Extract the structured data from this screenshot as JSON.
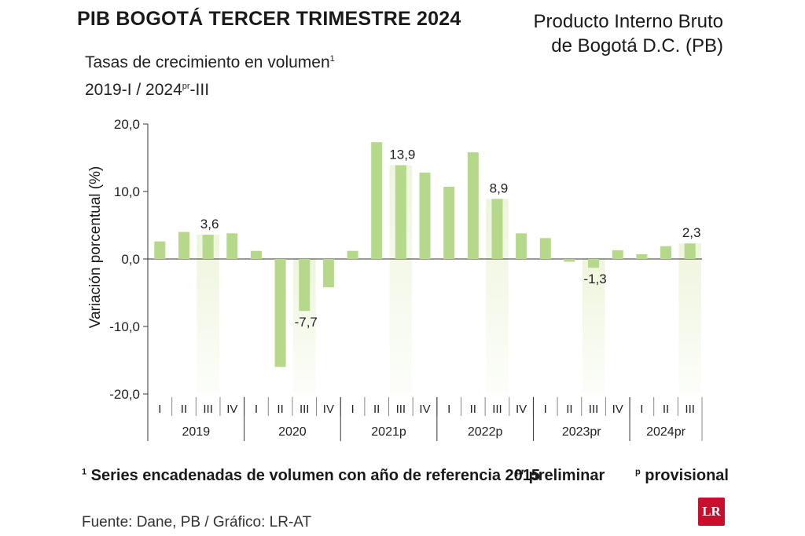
{
  "header": {
    "title": "PIB BOGOTÁ TERCER TRIMESTRE 2024",
    "right_line1": "Producto Interno Bruto",
    "right_line2": "de Bogotá D.C. (PB)",
    "subtitle_line1": "Tasas de crecimiento en volumen",
    "subtitle_sup1": "1",
    "subtitle_line2_a": "2019-I / 2024",
    "subtitle_line2_sup": "pr",
    "subtitle_line2_b": "-III"
  },
  "footer": {
    "note1_sup": "1",
    "note1": " Series encadenadas de volumen con año de referencia 2015",
    "note2_sup": "pr",
    "note2": " preliminar",
    "note3_sup": "p",
    "note3": " provisional",
    "source": "Fuente: Dane, PB / Gráfico: LR-AT",
    "logo_text": "LR"
  },
  "colors": {
    "bar": "#b5d88a",
    "highlight_band": "#eef5dd",
    "axis": "#333333",
    "logo": "#c8102e"
  },
  "chart_data": {
    "type": "bar",
    "title": "PIB BOGOTÁ TERCER TRIMESTRE 2024",
    "ylabel": "Variación porcentual (%)",
    "ylim": [
      -20,
      20
    ],
    "yticks": [
      "20,0",
      "10,0",
      "0,0",
      "-10,0",
      "-20,0"
    ],
    "ytick_values": [
      20,
      10,
      0,
      -10,
      -20
    ],
    "quarter_labels": [
      "I",
      "II",
      "III",
      "IV",
      "I",
      "II",
      "III",
      "IV",
      "I",
      "II",
      "III",
      "IV",
      "I",
      "II",
      "III",
      "IV",
      "I",
      "II",
      "III",
      "IV",
      "I",
      "II",
      "III"
    ],
    "year_groups": [
      {
        "label": "2019",
        "count": 4
      },
      {
        "label": "2020",
        "count": 4
      },
      {
        "label": "2021p",
        "count": 4
      },
      {
        "label": "2022p",
        "count": 4
      },
      {
        "label": "2023pr",
        "count": 4
      },
      {
        "label": "2024pr",
        "count": 3
      }
    ],
    "values": [
      2.6,
      4.0,
      3.6,
      3.8,
      1.2,
      -16.0,
      -7.7,
      -4.2,
      1.2,
      17.3,
      13.9,
      12.8,
      10.7,
      15.8,
      8.9,
      3.8,
      3.1,
      -0.4,
      -1.3,
      1.3,
      0.7,
      1.9,
      2.3
    ],
    "highlighted_index": [
      2,
      6,
      10,
      14,
      18,
      22
    ],
    "data_labels": [
      {
        "index": 2,
        "text": "3,6"
      },
      {
        "index": 6,
        "text": "-7,7"
      },
      {
        "index": 10,
        "text": "13,9"
      },
      {
        "index": 14,
        "text": "8,9"
      },
      {
        "index": 18,
        "text": "-1,3"
      },
      {
        "index": 22,
        "text": "2,3"
      }
    ]
  }
}
